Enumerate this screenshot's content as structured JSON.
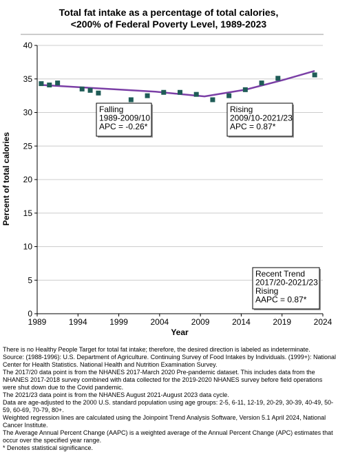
{
  "chart_data": {
    "type": "line",
    "title_lines": [
      "Total fat intake as a percentage of total calories,",
      "<200% of Federal Poverty Level,  1989-2023"
    ],
    "xlabel": "Year",
    "ylabel": "Percent of total calories",
    "xlim": [
      1989,
      2024
    ],
    "ylim": [
      0,
      40
    ],
    "x_ticks": [
      1989,
      1994,
      1999,
      2004,
      2009,
      2014,
      2019,
      2024
    ],
    "y_ticks": [
      0,
      5,
      10,
      15,
      20,
      25,
      30,
      35,
      40
    ],
    "grid": "horizontal",
    "colors": {
      "points": "#1f5c57",
      "trend": "#7b3fa6",
      "grid": "#cccccc"
    },
    "series": [
      {
        "type": "scatter",
        "points": [
          {
            "x": 1989.5,
            "y": 34.3
          },
          {
            "x": 1990.5,
            "y": 34.1
          },
          {
            "x": 1991.5,
            "y": 34.4
          },
          {
            "x": 1994.5,
            "y": 33.5
          },
          {
            "x": 1995.5,
            "y": 33.3
          },
          {
            "x": 1996.5,
            "y": 32.9
          },
          {
            "x": 2000.5,
            "y": 31.9
          },
          {
            "x": 2002.5,
            "y": 32.5
          },
          {
            "x": 2004.5,
            "y": 33.0
          },
          {
            "x": 2006.5,
            "y": 33.0
          },
          {
            "x": 2008.5,
            "y": 32.7
          },
          {
            "x": 2010.5,
            "y": 31.9
          },
          {
            "x": 2012.5,
            "y": 32.5
          },
          {
            "x": 2014.5,
            "y": 33.4
          },
          {
            "x": 2016.5,
            "y": 34.4
          },
          {
            "x": 2018.5,
            "y": 35.1
          },
          {
            "x": 2023.0,
            "y": 35.6
          }
        ]
      },
      {
        "type": "line",
        "points": [
          {
            "x": 1989.5,
            "y": 34.1
          },
          {
            "x": 2003.5,
            "y": 33.1
          },
          {
            "x": 2009.5,
            "y": 32.4
          },
          {
            "x": 2014.5,
            "y": 33.4
          },
          {
            "x": 2019.0,
            "y": 34.8
          },
          {
            "x": 2023.0,
            "y": 36.2
          }
        ]
      }
    ],
    "annotations": [
      {
        "lines": [
          "Falling",
          "1989-2009/10",
          "APC = -0.26*"
        ]
      },
      {
        "lines": [
          "Rising",
          "2009/10-2021/23",
          "APC =  0.87*"
        ]
      },
      {
        "lines": [
          "Recent Trend",
          "2017/20-2021/23",
          "Rising",
          "AAPC =  0.87*"
        ]
      }
    ]
  },
  "footnotes": [
    "There is no Healthy People Target for total fat intake; therefore, the desired direction is labeled as indeterminate.",
    "Source: (1988-1996): U.S. Department of Agriculture. Continuing Survey of Food Intakes by Individuals. (1999+): National Center for Health Statistics. National Health and Nutrition Examination Survey.",
    "The 2017/20 data point is from the NHANES 2017-March 2020 Pre-pandemic dataset. This includes data from the NHANES 2017-2018 survey combined with data collected for the 2019-2020 NHANES survey before field operations were shut down due to the Covid pandemic.",
    "The 2021/23 data point is from the NHANES August 2021-August 2023 data cycle.",
    "Data are age-adjusted to the 2000 U.S. standard population using age groups: 2-5, 6-11, 12-19, 20-29, 30-39, 40-49, 50-59, 60-69, 70-79, 80+.",
    "Weighted regression lines are calculated using the Joinpoint Trend Analysis Software, Version 5.1 April 2024, National Cancer Institute.",
    "The Average Annual Percent Change (AAPC) is a weighted average of the Annual Percent Change (APC) estimates that occur over the specified year range.",
    "* Denotes statistical significance."
  ]
}
